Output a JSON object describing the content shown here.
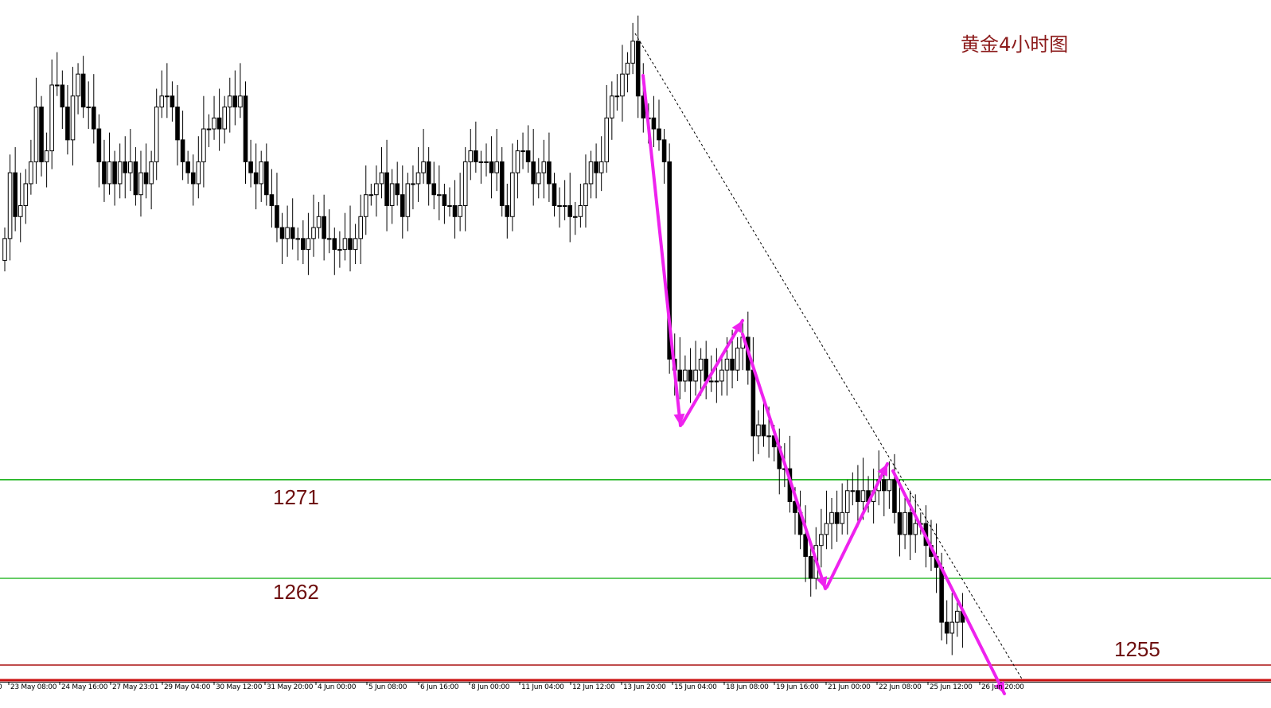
{
  "chart_data": {
    "type": "candlestick",
    "title": "黄金4小时图",
    "x_tick_labels": [
      "0",
      "23 May 08:00",
      "24 May 16:00",
      "27 May 23:01",
      "29 May 04:00",
      "30 May 12:00",
      "31 May 20:00",
      "4 Jun 00:00",
      "5 Jun 08:00",
      "6 Jun 16:00",
      "8 Jun 00:00",
      "11 Jun 04:00",
      "12 Jun 12:00",
      "13 Jun 20:00",
      "15 Jun 04:00",
      "18 Jun 08:00",
      "19 Jun 16:00",
      "21 Jun 00:00",
      "22 Jun 08:00",
      "25 Jun 12:00",
      "26 Jun 20:00"
    ],
    "y_range": [
      1252,
      1312
    ],
    "close": [
      1293,
      1299,
      1295,
      1296,
      1298,
      1300,
      1305,
      1300,
      1301,
      1307,
      1307,
      1305,
      1302,
      1306,
      1308,
      1305,
      1305,
      1303,
      1300,
      1298,
      1300,
      1298,
      1300,
      1299,
      1300,
      1297,
      1299,
      1298,
      1300,
      1305,
      1306,
      1306,
      1305,
      1302,
      1300,
      1299,
      1298,
      1300,
      1303,
      1303,
      1304,
      1303,
      1305,
      1306,
      1305,
      1306,
      1300,
      1299,
      1298,
      1300,
      1297,
      1296,
      1294,
      1293,
      1294,
      1293,
      1293,
      1292,
      1293,
      1294,
      1295,
      1293,
      1293,
      1292,
      1292,
      1293,
      1292,
      1293,
      1295,
      1297,
      1297,
      1298,
      1299,
      1296,
      1298,
      1297,
      1295,
      1298,
      1298,
      1299,
      1300,
      1298,
      1297,
      1297,
      1296,
      1296,
      1295,
      1296,
      1300,
      1301,
      1300,
      1300,
      1300,
      1299,
      1300,
      1296,
      1295,
      1299,
      1301,
      1301,
      1300,
      1298,
      1299,
      1300,
      1298,
      1296,
      1296,
      1296,
      1295,
      1295,
      1296,
      1298,
      1300,
      1299,
      1300,
      1304,
      1306,
      1306,
      1308,
      1309,
      1311,
      1306,
      1304,
      1304,
      1303,
      1302,
      1300,
      1282,
      1281,
      1280,
      1281,
      1280,
      1281,
      1282,
      1280,
      1280,
      1280,
      1281,
      1282,
      1281,
      1283,
      1284,
      1281,
      1275,
      1276,
      1275,
      1275,
      1274,
      1272,
      1272,
      1269,
      1268,
      1266,
      1264,
      1262,
      1265,
      1266,
      1267,
      1268,
      1267,
      1268,
      1270,
      1270,
      1269,
      1270,
      1269,
      1270,
      1271,
      1270,
      1271,
      1268,
      1266,
      1268,
      1266,
      1267,
      1267,
      1265,
      1264,
      1263,
      1258,
      1257,
      1258,
      1259,
      1258
    ],
    "levels": [
      {
        "label": "1271",
        "value": 1271,
        "color": "#33bb33"
      },
      {
        "label": "1262",
        "value": 1262,
        "color": "#33bb33"
      },
      {
        "label": "1255",
        "value": 1255,
        "color": "#aa1111"
      }
    ],
    "annotation_color": "#ee22ee",
    "trendline_style": "dotted"
  }
}
